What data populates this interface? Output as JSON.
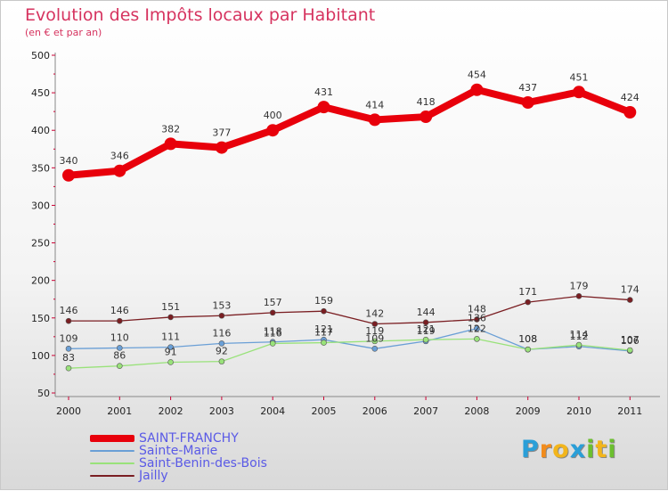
{
  "chart_data": {
    "type": "line",
    "title": "Evolution des Impôts locaux par Habitant",
    "subtitle": "(en € et par an)",
    "xlabel": "",
    "ylabel": "",
    "ylim": [
      50,
      500
    ],
    "yticks": [
      "50",
      "100",
      "150",
      "200",
      "250",
      "300",
      "350",
      "400",
      "450",
      "500"
    ],
    "categories": [
      "2000",
      "2001",
      "2002",
      "2003",
      "2004",
      "2005",
      "2006",
      "2007",
      "2008",
      "2009",
      "2010",
      "2011"
    ],
    "series": [
      {
        "name": "SAINT-FRANCHY",
        "color": "#e8000b",
        "values": [
          340,
          346,
          382,
          377,
          400,
          431,
          414,
          418,
          454,
          437,
          451,
          424
        ],
        "labels": [
          "340",
          "346",
          "382",
          "377",
          "400",
          "431",
          "414",
          "418",
          "454",
          "437",
          "451",
          "424"
        ]
      },
      {
        "name": "Sainte-Marie",
        "color": "#6a9fd6",
        "values": [
          109,
          110,
          111,
          116,
          118,
          121,
          109,
          119,
          136,
          108,
          112,
          106
        ],
        "labels": [
          "109",
          "110",
          "111",
          "116",
          "118",
          "121",
          "109",
          "119",
          "136",
          "108",
          "112",
          "106"
        ]
      },
      {
        "name": "Saint-Benin-des-Bois",
        "color": "#99e27a",
        "values": [
          83,
          86,
          91,
          92,
          116,
          117,
          119,
          121,
          122,
          108,
          114,
          107
        ],
        "labels": [
          "83",
          "86",
          "91",
          "92",
          "116",
          "117",
          "119",
          "121",
          "122",
          "108",
          "114",
          "107"
        ]
      },
      {
        "name": "Jailly",
        "color": "#7a1e22",
        "values": [
          146,
          146,
          151,
          153,
          157,
          159,
          142,
          144,
          148,
          171,
          179,
          174
        ],
        "labels": [
          "146",
          "146",
          "151",
          "153",
          "157",
          "159",
          "142",
          "144",
          "148",
          "171",
          "179",
          "174"
        ]
      }
    ],
    "grid": false,
    "legend_position": "bottom-left"
  },
  "logo": {
    "letters": [
      "P",
      "r",
      "o",
      "x",
      "i",
      "t",
      "i"
    ],
    "colors": [
      "#2a9fd8",
      "#f28c1c",
      "#f2b51c",
      "#2a9fd8",
      "#6cbf2f",
      "#f2b51c",
      "#6cbf2f"
    ]
  }
}
